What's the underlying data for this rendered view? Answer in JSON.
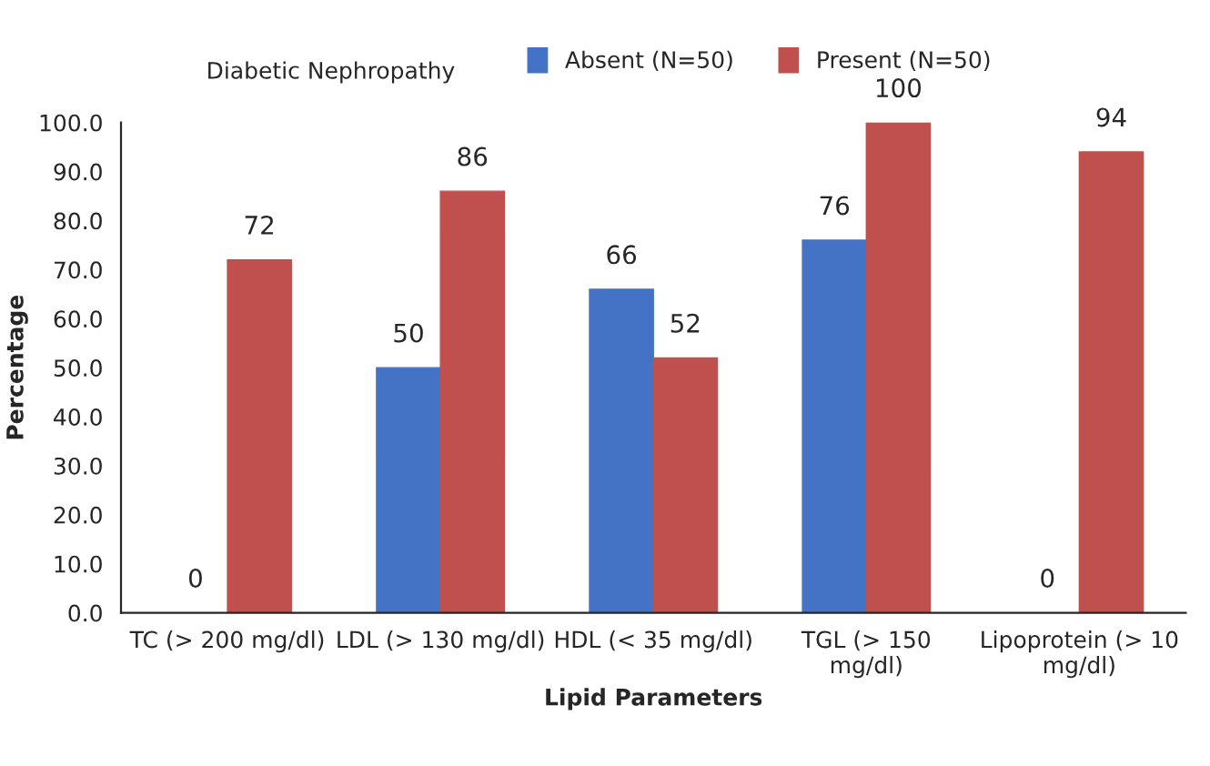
{
  "chart_data": {
    "type": "bar",
    "legend_title": "Diabetic Nephropathy",
    "xlabel": "Lipid Parameters",
    "ylabel": "Percentage",
    "categories": [
      "TC (> 200 mg/dl)",
      "LDL (> 130 mg/dl)",
      "HDL (< 35 mg/dl)",
      "TGL (> 150\nmg/dl)",
      "Lipoprotein (> 10\nmg/dl)"
    ],
    "series": [
      {
        "name": "Absent (N=50)",
        "color": "#4472c4",
        "values": [
          0,
          50,
          66,
          76,
          0
        ]
      },
      {
        "name": "Present (N=50)",
        "color": "#c0504d",
        "values": [
          72,
          86,
          52,
          100,
          94
        ]
      }
    ],
    "ylim": [
      0,
      100
    ],
    "yticks": [
      {
        "value": 0,
        "label": "0.0"
      },
      {
        "value": 10,
        "label": "10.0"
      },
      {
        "value": 20,
        "label": "20.0"
      },
      {
        "value": 30,
        "label": "30.0"
      },
      {
        "value": 40,
        "label": "40.0"
      },
      {
        "value": 50,
        "label": "50.0"
      },
      {
        "value": 60,
        "label": "60.0"
      },
      {
        "value": 70,
        "label": "70.0"
      },
      {
        "value": 80,
        "label": "80.0"
      },
      {
        "value": 90,
        "label": "90.0"
      },
      {
        "value": 100,
        "label": "100.0"
      }
    ],
    "data_labels": true,
    "legend": "top",
    "grid": false
  }
}
